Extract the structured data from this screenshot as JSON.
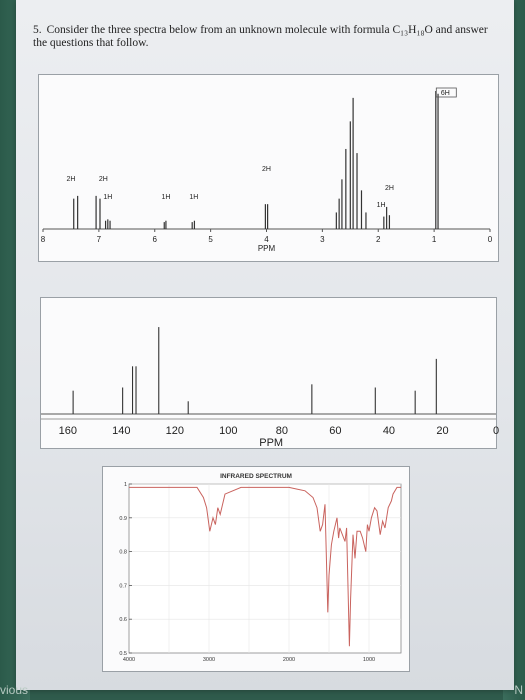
{
  "question": {
    "number": "5.",
    "text": "Consider the three spectra below from an unknown molecule with formula C₁₃H₁₈O and answer the questions that follow."
  },
  "nav": {
    "previous": "vious",
    "next": "N"
  },
  "chart_data": [
    {
      "type": "line",
      "kind": "1H NMR",
      "xlabel": "PPM",
      "xlim": [
        8,
        0
      ],
      "ticks": [
        "8",
        "7",
        "6",
        "5",
        "4",
        "3",
        "2",
        "1",
        "0"
      ],
      "integrations": [
        {
          "ppm": 7.45,
          "label": "2H"
        },
        {
          "ppm": 7.0,
          "label": "2H"
        },
        {
          "ppm": 6.8,
          "label": "1H"
        },
        {
          "ppm": 5.8,
          "label": "1H"
        },
        {
          "ppm": 5.3,
          "label": "1H"
        },
        {
          "ppm": 4.0,
          "label": "2H"
        },
        {
          "ppm": 1.85,
          "label": "2H"
        },
        {
          "ppm": 1.9,
          "label": "1H"
        },
        {
          "ppm": 0.95,
          "label": "6H"
        }
      ],
      "peaks": [
        {
          "ppm": 7.45,
          "h": 0.22
        },
        {
          "ppm": 7.38,
          "h": 0.24
        },
        {
          "ppm": 7.05,
          "h": 0.24
        },
        {
          "ppm": 6.98,
          "h": 0.22
        },
        {
          "ppm": 6.88,
          "h": 0.06
        },
        {
          "ppm": 6.84,
          "h": 0.07
        },
        {
          "ppm": 6.8,
          "h": 0.06
        },
        {
          "ppm": 5.83,
          "h": 0.05
        },
        {
          "ppm": 5.8,
          "h": 0.06
        },
        {
          "ppm": 5.33,
          "h": 0.05
        },
        {
          "ppm": 5.29,
          "h": 0.06
        },
        {
          "ppm": 4.02,
          "h": 0.18
        },
        {
          "ppm": 3.98,
          "h": 0.18
        },
        {
          "ppm": 2.75,
          "h": 0.12
        },
        {
          "ppm": 2.7,
          "h": 0.22
        },
        {
          "ppm": 2.65,
          "h": 0.36
        },
        {
          "ppm": 2.58,
          "h": 0.58
        },
        {
          "ppm": 2.5,
          "h": 0.78
        },
        {
          "ppm": 2.45,
          "h": 0.95
        },
        {
          "ppm": 2.38,
          "h": 0.55
        },
        {
          "ppm": 2.3,
          "h": 0.28
        },
        {
          "ppm": 2.22,
          "h": 0.12
        },
        {
          "ppm": 1.9,
          "h": 0.09
        },
        {
          "ppm": 1.85,
          "h": 0.16
        },
        {
          "ppm": 1.8,
          "h": 0.1
        },
        {
          "ppm": 0.97,
          "h": 1.0
        },
        {
          "ppm": 0.93,
          "h": 0.98
        }
      ]
    },
    {
      "type": "line",
      "kind": "13C NMR",
      "xlabel": "PPM",
      "xlim": [
        170,
        0
      ],
      "ticks": [
        "160",
        "140",
        "120",
        "100",
        "80",
        "60",
        "40",
        "20",
        "0"
      ],
      "peaks": [
        {
          "ppm": 158.0,
          "h": 0.22
        },
        {
          "ppm": 139.5,
          "h": 0.25
        },
        {
          "ppm": 135.8,
          "h": 0.45
        },
        {
          "ppm": 134.5,
          "h": 0.45
        },
        {
          "ppm": 126.0,
          "h": 0.82
        },
        {
          "ppm": 115.0,
          "h": 0.12
        },
        {
          "ppm": 68.8,
          "h": 0.28
        },
        {
          "ppm": 45.1,
          "h": 0.25
        },
        {
          "ppm": 30.2,
          "h": 0.22
        },
        {
          "ppm": 22.3,
          "h": 0.52
        }
      ]
    },
    {
      "type": "line",
      "kind": "IR",
      "title": "INFRARED SPECTRUM",
      "xlim": [
        4000,
        600
      ],
      "ylim": [
        0.5,
        1.0
      ],
      "xticks": [
        "4000",
        "3000",
        "2000",
        "1000"
      ],
      "yticks": [
        "1",
        "0.9",
        "0.8",
        "0.7",
        "0.6",
        "0.5"
      ],
      "color": "#c9635e",
      "x": [
        4000,
        3800,
        3600,
        3450,
        3300,
        3150,
        3070,
        3030,
        2990,
        2950,
        2920,
        2890,
        2860,
        2800,
        2600,
        2400,
        2200,
        2000,
        1900,
        1800,
        1700,
        1650,
        1610,
        1580,
        1550,
        1515,
        1500,
        1470,
        1440,
        1400,
        1380,
        1365,
        1300,
        1280,
        1245,
        1230,
        1200,
        1175,
        1150,
        1110,
        1080,
        1040,
        1020,
        1000,
        970,
        930,
        900,
        860,
        830,
        800,
        760,
        720,
        700,
        650,
        600
      ],
      "y": [
        0.99,
        0.99,
        0.99,
        0.99,
        0.99,
        0.99,
        0.96,
        0.93,
        0.86,
        0.9,
        0.88,
        0.93,
        0.91,
        0.97,
        0.99,
        0.99,
        0.99,
        0.99,
        0.985,
        0.98,
        0.96,
        0.93,
        0.86,
        0.88,
        0.94,
        0.62,
        0.73,
        0.82,
        0.86,
        0.9,
        0.84,
        0.87,
        0.83,
        0.87,
        0.52,
        0.66,
        0.85,
        0.78,
        0.86,
        0.86,
        0.84,
        0.8,
        0.88,
        0.86,
        0.9,
        0.93,
        0.92,
        0.85,
        0.89,
        0.87,
        0.93,
        0.95,
        0.97,
        0.99,
        0.99
      ]
    }
  ]
}
